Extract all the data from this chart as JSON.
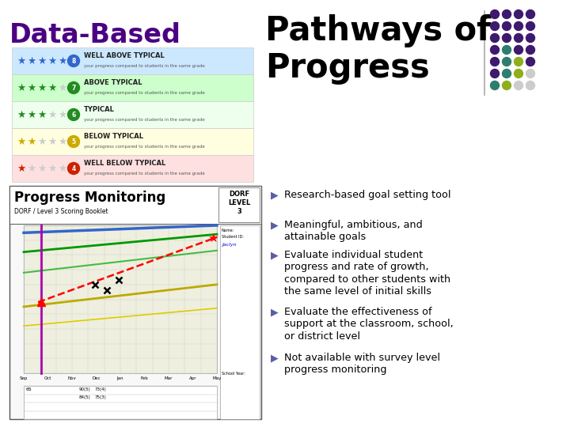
{
  "title_left": "Data-Based",
  "title_right": "Pathways of\nProgress",
  "title_left_color": "#4B0082",
  "title_right_color": "#000000",
  "bg_color": "#ffffff",
  "bullet_arrow_color": "#5B5EA6",
  "bullet_items": [
    "Research-based goal setting tool",
    "Meaningful, ambitious, and\nattainable goals",
    "Evaluate individual student\nprogress and rate of growth,\ncompared to other students with\nthe same level of initial skills",
    "Evaluate the effectiveness of\nsupport at the classroom, school,\nor district level",
    "Not available with survey level\nprogress monitoring"
  ],
  "dot_grid": [
    [
      "#3d1a6e",
      "#3d1a6e",
      "#3d1a6e",
      "#3d1a6e"
    ],
    [
      "#3d1a6e",
      "#3d1a6e",
      "#3d1a6e",
      "#3d1a6e"
    ],
    [
      "#3d1a6e",
      "#3d1a6e",
      "#3d1a6e",
      "#3d1a6e"
    ],
    [
      "#3d1a6e",
      "#2e7d6e",
      "#3d1a6e",
      "#3d1a6e"
    ],
    [
      "#3d1a6e",
      "#2e7d6e",
      "#8fae1b",
      "#3d1a6e"
    ],
    [
      "#3d1a6e",
      "#2e7d6e",
      "#8fae1b",
      "#cccccc"
    ],
    [
      "#2e7d6e",
      "#8fae1b",
      "#cccccc",
      "#cccccc"
    ]
  ],
  "rating_rows": [
    {
      "bg": "#cce8ff",
      "stars": 5,
      "star_color": "#3366cc",
      "icon_color": "#3366cc",
      "label": "WELL ABOVE TYPICAL"
    },
    {
      "bg": "#ccffcc",
      "stars": 4,
      "star_color": "#228B22",
      "icon_color": "#228B22",
      "label": "ABOVE TYPICAL"
    },
    {
      "bg": "#eeffee",
      "stars": 3,
      "star_color": "#228B22",
      "icon_color": "#228B22",
      "label": "TYPICAL"
    },
    {
      "bg": "#ffffe0",
      "stars": 2,
      "star_color": "#ccaa00",
      "icon_color": "#ccaa00",
      "label": "BELOW TYPICAL"
    },
    {
      "bg": "#ffe0e0",
      "stars": 1,
      "star_color": "#cc2200",
      "icon_color": "#cc2200",
      "label": "WELL BELOW TYPICAL"
    }
  ]
}
